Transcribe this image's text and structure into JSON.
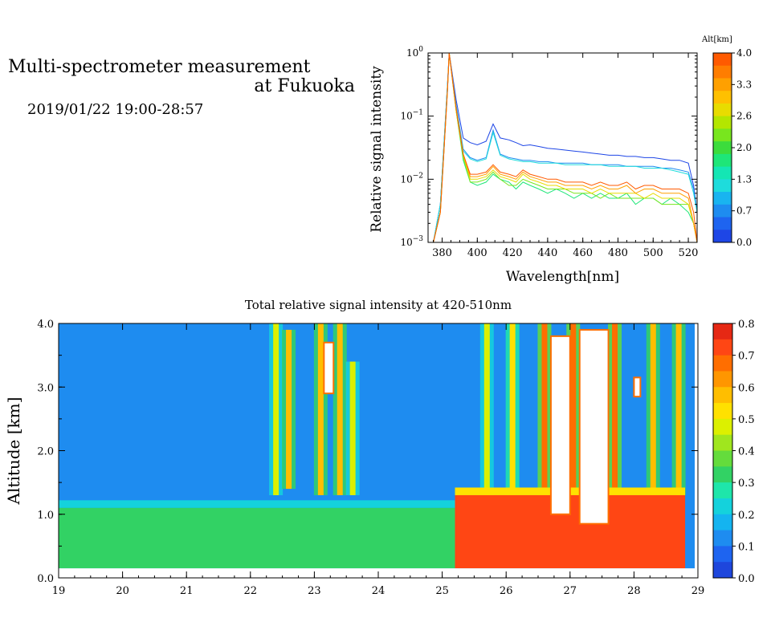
{
  "header": {
    "title_line1": "Multi-spectrometer measurement",
    "title_line2": "at Fukuoka",
    "date_range": "2019/01/22 19:00-28:57"
  },
  "chart_data": [
    {
      "type": "line",
      "title": "",
      "xlabel": "Wavelength[nm]",
      "ylabel": "Relative signal intensity",
      "y_scale": "log",
      "xlim": [
        372,
        525
      ],
      "ylim": [
        0.001,
        1
      ],
      "x_ticks": [
        "380",
        "400",
        "420",
        "440",
        "460",
        "480",
        "500",
        "520"
      ],
      "y_ticks": [
        "10^-3",
        "10^-2",
        "10^-1",
        "10^0"
      ],
      "colorbar": {
        "title": "Alt[km]",
        "labels": [
          "4.0",
          "3.3",
          "2.6",
          "2.0",
          "1.3",
          "0.7",
          "0.0"
        ],
        "colors": [
          "#ff5a00",
          "#ff7d00",
          "#ffa000",
          "#ffc000",
          "#e8dc00",
          "#b4e600",
          "#78e61e",
          "#3cdc3c",
          "#1ee678",
          "#14e6b4",
          "#1edcdc",
          "#19b4f0",
          "#1e8cf0",
          "#1e64f0",
          "#1e46e6"
        ]
      },
      "x": [
        375,
        379,
        383,
        384,
        388,
        392,
        396,
        400,
        405,
        409,
        413,
        418,
        422,
        426,
        430,
        435,
        440,
        445,
        450,
        455,
        460,
        465,
        470,
        475,
        480,
        485,
        490,
        495,
        500,
        505,
        510,
        515,
        520,
        523,
        525
      ],
      "series": [
        {
          "color": "#1e46e6",
          "values": [
            0.001,
            0.004,
            0.3,
            1.0,
            0.18,
            0.045,
            0.038,
            0.035,
            0.04,
            0.075,
            0.045,
            0.042,
            0.038,
            0.034,
            0.035,
            0.033,
            0.031,
            0.03,
            0.029,
            0.028,
            0.027,
            0.026,
            0.025,
            0.024,
            0.024,
            0.023,
            0.023,
            0.022,
            0.022,
            0.021,
            0.02,
            0.02,
            0.018,
            0.008,
            0.003
          ]
        },
        {
          "color": "#1e8cf0",
          "values": [
            0.001,
            0.004,
            0.3,
            1.0,
            0.15,
            0.03,
            0.022,
            0.02,
            0.022,
            0.06,
            0.025,
            0.022,
            0.021,
            0.02,
            0.02,
            0.019,
            0.019,
            0.018,
            0.018,
            0.018,
            0.018,
            0.017,
            0.017,
            0.017,
            0.017,
            0.016,
            0.016,
            0.016,
            0.016,
            0.015,
            0.015,
            0.014,
            0.013,
            0.007,
            0.003
          ]
        },
        {
          "color": "#1edcdc",
          "values": [
            0.001,
            0.004,
            0.3,
            1.0,
            0.14,
            0.028,
            0.021,
            0.019,
            0.021,
            0.055,
            0.024,
            0.021,
            0.02,
            0.019,
            0.019,
            0.018,
            0.018,
            0.018,
            0.017,
            0.017,
            0.017,
            0.017,
            0.017,
            0.016,
            0.016,
            0.016,
            0.016,
            0.015,
            0.015,
            0.015,
            0.014,
            0.013,
            0.012,
            0.006,
            0.003
          ]
        },
        {
          "color": "#1ee678",
          "values": [
            0.001,
            0.003,
            0.25,
            1.0,
            0.12,
            0.02,
            0.009,
            0.008,
            0.009,
            0.012,
            0.01,
            0.009,
            0.007,
            0.009,
            0.008,
            0.007,
            0.006,
            0.007,
            0.006,
            0.005,
            0.006,
            0.005,
            0.006,
            0.005,
            0.005,
            0.006,
            0.004,
            0.005,
            0.005,
            0.004,
            0.005,
            0.004,
            0.003,
            0.002,
            0.001
          ]
        },
        {
          "color": "#78e61e",
          "values": [
            0.001,
            0.003,
            0.25,
            1.0,
            0.12,
            0.022,
            0.009,
            0.009,
            0.01,
            0.013,
            0.01,
            0.008,
            0.008,
            0.01,
            0.009,
            0.008,
            0.007,
            0.007,
            0.007,
            0.006,
            0.006,
            0.006,
            0.005,
            0.006,
            0.005,
            0.005,
            0.005,
            0.005,
            0.005,
            0.004,
            0.004,
            0.004,
            0.004,
            0.002,
            0.001
          ]
        },
        {
          "color": "#e8dc00",
          "values": [
            0.001,
            0.003,
            0.25,
            1.0,
            0.12,
            0.024,
            0.01,
            0.01,
            0.011,
            0.014,
            0.011,
            0.01,
            0.009,
            0.012,
            0.01,
            0.009,
            0.008,
            0.008,
            0.007,
            0.007,
            0.007,
            0.006,
            0.007,
            0.006,
            0.006,
            0.006,
            0.006,
            0.005,
            0.006,
            0.005,
            0.005,
            0.005,
            0.004,
            0.002,
            0.001
          ]
        },
        {
          "color": "#ffa000",
          "values": [
            0.001,
            0.003,
            0.25,
            1.0,
            0.13,
            0.025,
            0.011,
            0.011,
            0.012,
            0.016,
            0.012,
            0.011,
            0.01,
            0.013,
            0.011,
            0.01,
            0.009,
            0.009,
            0.008,
            0.008,
            0.008,
            0.007,
            0.008,
            0.007,
            0.007,
            0.008,
            0.006,
            0.007,
            0.007,
            0.006,
            0.006,
            0.006,
            0.005,
            0.002,
            0.001
          ]
        },
        {
          "color": "#ff5a00",
          "values": [
            0.001,
            0.003,
            0.25,
            1.0,
            0.13,
            0.025,
            0.012,
            0.012,
            0.013,
            0.017,
            0.013,
            0.012,
            0.011,
            0.014,
            0.012,
            0.011,
            0.01,
            0.01,
            0.009,
            0.009,
            0.009,
            0.008,
            0.009,
            0.008,
            0.008,
            0.009,
            0.007,
            0.008,
            0.008,
            0.007,
            0.007,
            0.007,
            0.006,
            0.003,
            0.001
          ]
        }
      ]
    },
    {
      "type": "heatmap",
      "title": "Total relative signal intensity at 420-510nm",
      "xlabel": "",
      "ylabel": "Altitude [km]",
      "xlim": [
        19,
        29
      ],
      "ylim": [
        0,
        4
      ],
      "x_ticks": [
        "19",
        "20",
        "21",
        "22",
        "23",
        "24",
        "25",
        "26",
        "27",
        "28",
        "29"
      ],
      "y_ticks": [
        "0.0",
        "1.0",
        "2.0",
        "3.0",
        "4.0"
      ],
      "data_end_hour": 28.95,
      "colorbar": {
        "labels": [
          "0.8",
          "0.7",
          "0.6",
          "0.5",
          "0.4",
          "0.3",
          "0.2",
          "0.1",
          "0.0"
        ],
        "colors": [
          "#e62814",
          "#ff4614",
          "#ff6e00",
          "#ff9600",
          "#ffbe00",
          "#ffe100",
          "#dcf000",
          "#a0e61e",
          "#64dc3c",
          "#32d264",
          "#1ee6aa",
          "#14d2dc",
          "#14b4f0",
          "#1e8cf0",
          "#1e64f0",
          "#1e46dc"
        ]
      },
      "boundary_layer": [
        {
          "start_hour": 19.0,
          "end_hour": 25.2,
          "top_km": 1.1,
          "value": 0.35
        },
        {
          "start_hour": 25.2,
          "end_hour": 28.8,
          "top_km": 1.3,
          "value": 0.72
        }
      ],
      "free_troposphere_value": 0.1,
      "no_data_regions": [
        {
          "start_hour": 26.7,
          "end_hour": 27.0,
          "bottom_km": 1.0,
          "top_km": 3.8
        },
        {
          "start_hour": 27.15,
          "end_hour": 27.6,
          "bottom_km": 0.85,
          "top_km": 3.9
        },
        {
          "start_hour": 28.0,
          "end_hour": 28.1,
          "bottom_km": 2.85,
          "top_km": 3.15
        },
        {
          "start_hour": 23.15,
          "end_hour": 23.3,
          "bottom_km": 2.9,
          "top_km": 3.7
        }
      ],
      "plumes": [
        {
          "hour": 22.4,
          "bottom_km": 1.3,
          "top_km": 4.0,
          "value": 0.45
        },
        {
          "hour": 22.6,
          "bottom_km": 1.4,
          "top_km": 3.9,
          "value": 0.55
        },
        {
          "hour": 23.1,
          "bottom_km": 1.3,
          "top_km": 4.0,
          "value": 0.55
        },
        {
          "hour": 23.4,
          "bottom_km": 1.3,
          "top_km": 4.0,
          "value": 0.6
        },
        {
          "hour": 23.6,
          "bottom_km": 1.3,
          "top_km": 3.4,
          "value": 0.45
        },
        {
          "hour": 25.7,
          "bottom_km": 1.3,
          "top_km": 4.0,
          "value": 0.45
        },
        {
          "hour": 26.1,
          "bottom_km": 1.3,
          "top_km": 4.0,
          "value": 0.5
        },
        {
          "hour": 26.6,
          "bottom_km": 1.0,
          "top_km": 4.0,
          "value": 0.7
        },
        {
          "hour": 27.05,
          "bottom_km": 1.0,
          "top_km": 4.0,
          "value": 0.7
        },
        {
          "hour": 27.7,
          "bottom_km": 1.0,
          "top_km": 4.0,
          "value": 0.7
        },
        {
          "hour": 28.3,
          "bottom_km": 1.3,
          "top_km": 4.0,
          "value": 0.55
        },
        {
          "hour": 28.7,
          "bottom_km": 1.3,
          "top_km": 4.0,
          "value": 0.6
        }
      ]
    }
  ]
}
